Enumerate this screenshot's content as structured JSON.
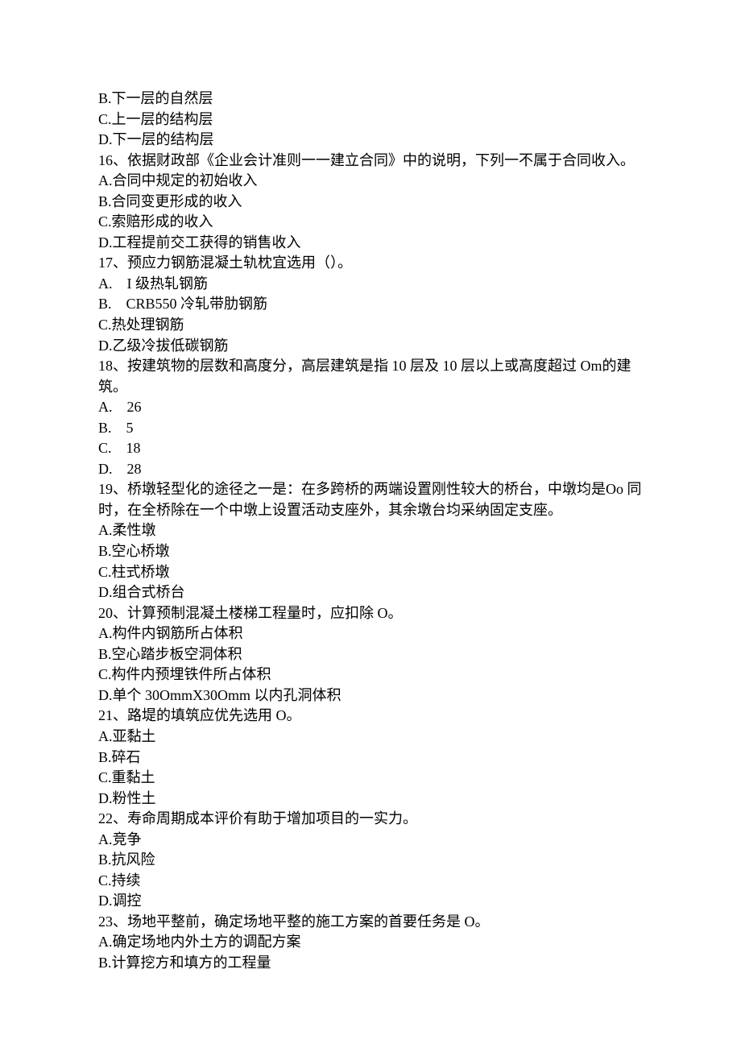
{
  "lines": [
    "B.下一层的自然层",
    "C.上一层的结构层",
    "D.下一层的结构层",
    "16、依据财政部《企业会计准则一一建立合同》中的说明，下列一不属于合同收入。",
    "A.合同中规定的初始收入",
    "B.合同变更形成的收入",
    "C.索赔形成的收入",
    "D.工程提前交工获得的销售收入",
    "17、预应力钢筋混凝土轨枕宜选用（）。",
    "A.　I 级热轧钢筋",
    "B.　CRB550 冷轧带肋钢筋",
    "C.热处理钢筋",
    "D.乙级冷拔低碳钢筋",
    "18、按建筑物的层数和高度分，高层建筑是指 10 层及 10 层以上或高度超过 Om的建筑。",
    "A.　26",
    "B.　5",
    "C.　18",
    "D.　28",
    "19、桥墩轻型化的途径之一是：在多跨桥的两端设置刚性较大的桥台，中墩均是Oo 同时，在全桥除在一个中墩上设置活动支座外，其余墩台均采纳固定支座。",
    "A.柔性墩",
    "B.空心桥墩",
    "C.柱式桥墩",
    "D.组合式桥台",
    "20、计算预制混凝土楼梯工程量时，应扣除 O。",
    "A.构件内钢筋所占体积",
    "B.空心踏步板空洞体积",
    "C.构件内预埋铁件所占体积",
    "D.单个 30OmmX30Omm 以内孔洞体积",
    "21、路堤的填筑应优先选用 O。",
    "A.亚黏土",
    "B.碎石",
    "C.重黏土",
    "D.粉性土",
    "22、寿命周期成本评价有助于增加项目的一实力。",
    "A.竞争",
    "B.抗风险",
    "C.持续",
    "D.调控",
    "23、场地平整前，确定场地平整的施工方案的首要任务是 O。",
    "A.确定场地内外土方的调配方案",
    "B.计算挖方和填方的工程量"
  ]
}
